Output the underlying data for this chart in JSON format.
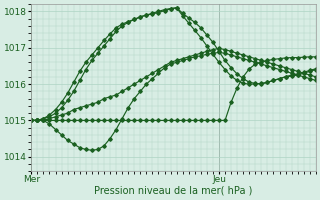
{
  "xlabel": "Pression niveau de la mer( hPa )",
  "bg_color": "#d8ede4",
  "grid_color": "#aed4c4",
  "line_color": "#1a6020",
  "axis_label_color": "#1a6020",
  "tick_label_color": "#1a6020",
  "ylim": [
    1013.6,
    1018.2
  ],
  "xlim": [
    0,
    47
  ],
  "yticks": [
    1014,
    1015,
    1016,
    1017,
    1018
  ],
  "mer_x": 0,
  "jeu_x": 31,
  "vline_color": "#888888",
  "series": [
    {
      "name": "flat_rise",
      "x": [
        0,
        1,
        2,
        3,
        4,
        5,
        6,
        7,
        8,
        9,
        10,
        11,
        12,
        13,
        14,
        15,
        16,
        17,
        18,
        19,
        20,
        21,
        22,
        23,
        24,
        25,
        26,
        27,
        28,
        29,
        30,
        31,
        32,
        33,
        34,
        35,
        36,
        37,
        38,
        39,
        40,
        41,
        42,
        43,
        44,
        45,
        46,
        47
      ],
      "y": [
        1015.0,
        1015.0,
        1015.0,
        1015.05,
        1015.1,
        1015.15,
        1015.2,
        1015.3,
        1015.35,
        1015.4,
        1015.45,
        1015.5,
        1015.6,
        1015.65,
        1015.7,
        1015.8,
        1015.9,
        1016.0,
        1016.1,
        1016.2,
        1016.3,
        1016.4,
        1016.5,
        1016.6,
        1016.65,
        1016.7,
        1016.75,
        1016.8,
        1016.85,
        1016.9,
        1016.95,
        1016.98,
        1016.95,
        1016.9,
        1016.85,
        1016.8,
        1016.75,
        1016.7,
        1016.65,
        1016.6,
        1016.55,
        1016.5,
        1016.45,
        1016.4,
        1016.35,
        1016.3,
        1016.25,
        1016.2
      ]
    },
    {
      "name": "dip_rise",
      "x": [
        0,
        1,
        2,
        3,
        4,
        5,
        6,
        7,
        8,
        9,
        10,
        11,
        12,
        13,
        14,
        15,
        16,
        17,
        18,
        19,
        20,
        21,
        22,
        23,
        24,
        25,
        26,
        27,
        28,
        29,
        30,
        31,
        32,
        33,
        34,
        35,
        36,
        37,
        38,
        39,
        40,
        41,
        42,
        43,
        44,
        45,
        46,
        47
      ],
      "y": [
        1015.0,
        1015.0,
        1015.0,
        1014.9,
        1014.75,
        1014.6,
        1014.45,
        1014.35,
        1014.25,
        1014.2,
        1014.18,
        1014.2,
        1014.3,
        1014.5,
        1014.75,
        1015.05,
        1015.35,
        1015.6,
        1015.8,
        1016.0,
        1016.15,
        1016.3,
        1016.45,
        1016.55,
        1016.6,
        1016.65,
        1016.7,
        1016.75,
        1016.78,
        1016.82,
        1016.85,
        1016.87,
        1016.85,
        1016.8,
        1016.75,
        1016.7,
        1016.65,
        1016.6,
        1016.55,
        1016.5,
        1016.45,
        1016.4,
        1016.35,
        1016.3,
        1016.25,
        1016.2,
        1016.15,
        1016.1
      ]
    },
    {
      "name": "high_peak_1",
      "x": [
        0,
        1,
        2,
        3,
        4,
        5,
        6,
        7,
        8,
        9,
        10,
        11,
        12,
        13,
        14,
        15,
        16,
        17,
        18,
        19,
        20,
        21,
        22,
        23,
        24,
        25,
        26,
        27,
        28,
        29,
        30,
        31,
        32,
        33,
        34,
        35,
        36,
        37,
        38,
        39,
        40,
        41,
        42,
        43,
        44,
        45,
        46,
        47
      ],
      "y": [
        1015.0,
        1015.0,
        1015.05,
        1015.1,
        1015.2,
        1015.35,
        1015.55,
        1015.8,
        1016.1,
        1016.4,
        1016.65,
        1016.85,
        1017.05,
        1017.25,
        1017.45,
        1017.6,
        1017.7,
        1017.78,
        1017.85,
        1017.9,
        1017.93,
        1017.97,
        1018.02,
        1018.07,
        1018.1,
        1017.95,
        1017.82,
        1017.7,
        1017.55,
        1017.35,
        1017.15,
        1016.9,
        1016.65,
        1016.45,
        1016.28,
        1016.15,
        1016.05,
        1016.02,
        1016.0,
        1016.05,
        1016.1,
        1016.15,
        1016.2,
        1016.22,
        1016.25,
        1016.3,
        1016.35,
        1016.4
      ]
    },
    {
      "name": "high_peak_2",
      "x": [
        0,
        1,
        2,
        3,
        4,
        5,
        6,
        7,
        8,
        9,
        10,
        11,
        12,
        13,
        14,
        15,
        16,
        17,
        18,
        19,
        20,
        21,
        22,
        23,
        24,
        25,
        26,
        27,
        28,
        29,
        30,
        31,
        32,
        33,
        34,
        35,
        36,
        37,
        38,
        39,
        40,
        41,
        42,
        43,
        44,
        45,
        46,
        47
      ],
      "y": [
        1015.0,
        1015.0,
        1015.05,
        1015.15,
        1015.3,
        1015.5,
        1015.75,
        1016.05,
        1016.35,
        1016.6,
        1016.8,
        1017.0,
        1017.2,
        1017.38,
        1017.55,
        1017.65,
        1017.72,
        1017.78,
        1017.85,
        1017.9,
        1017.95,
        1018.0,
        1018.05,
        1018.08,
        1018.1,
        1017.88,
        1017.68,
        1017.48,
        1017.28,
        1017.05,
        1016.82,
        1016.6,
        1016.4,
        1016.22,
        1016.1,
        1016.02,
        1016.0,
        1016.0,
        1016.02,
        1016.05,
        1016.1,
        1016.15,
        1016.2,
        1016.25,
        1016.28,
        1016.32,
        1016.38,
        1016.42
      ]
    },
    {
      "name": "flat_then_rise",
      "x": [
        0,
        1,
        2,
        3,
        4,
        5,
        6,
        7,
        8,
        9,
        10,
        11,
        12,
        13,
        14,
        15,
        16,
        17,
        18,
        19,
        20,
        21,
        22,
        23,
        24,
        25,
        26,
        27,
        28,
        29,
        30,
        31,
        32,
        33,
        34,
        35,
        36,
        37,
        38,
        39,
        40,
        41,
        42,
        43,
        44,
        45,
        46,
        47
      ],
      "y": [
        1015.0,
        1015.0,
        1015.0,
        1015.0,
        1015.0,
        1015.0,
        1015.0,
        1015.0,
        1015.0,
        1015.0,
        1015.0,
        1015.0,
        1015.0,
        1015.0,
        1015.0,
        1015.0,
        1015.0,
        1015.0,
        1015.0,
        1015.0,
        1015.0,
        1015.0,
        1015.0,
        1015.0,
        1015.0,
        1015.0,
        1015.0,
        1015.0,
        1015.0,
        1015.0,
        1015.0,
        1015.0,
        1015.0,
        1015.5,
        1015.9,
        1016.2,
        1016.42,
        1016.55,
        1016.62,
        1016.65,
        1016.68,
        1016.7,
        1016.72,
        1016.73,
        1016.73,
        1016.74,
        1016.75,
        1016.75
      ]
    }
  ]
}
